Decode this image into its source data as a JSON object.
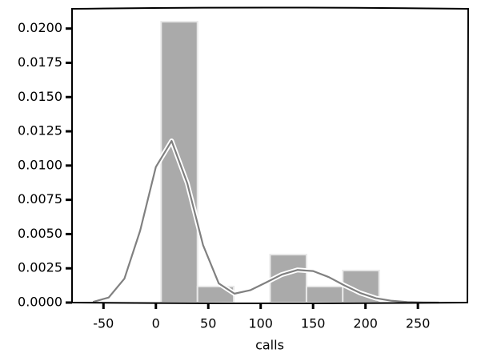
{
  "chart_data": {
    "type": "histogram",
    "xlabel": "calls",
    "bins": [
      5,
      39.7,
      74.3,
      109,
      143.7,
      178.3,
      213
    ],
    "values": [
      0.0205,
      0.00117,
      0,
      0.0035,
      0.00117,
      0.00234
    ],
    "color": "#aaaaaa",
    "line": {
      "color": "#808080",
      "x": [
        -60,
        -45,
        -30,
        -15,
        0,
        15,
        30,
        45,
        60,
        75,
        90,
        105,
        120,
        135,
        150,
        165,
        180,
        195,
        210,
        225,
        240,
        255,
        270
      ],
      "values": [
        5e-05,
        0.00037,
        0.00175,
        0.00525,
        0.0099,
        0.0118,
        0.0087,
        0.0042,
        0.0014,
        0.00065,
        0.0009,
        0.00146,
        0.00204,
        0.00238,
        0.0023,
        0.00186,
        0.00125,
        0.0007,
        0.00032,
        0.00013,
        4e-05,
        1e-05,
        0
      ]
    },
    "xlim": [
      -80,
      298
    ],
    "ylim": [
      0,
      0.0215
    ],
    "xticks": [
      -50,
      0,
      50,
      100,
      150,
      200,
      250
    ],
    "yticks": [
      {
        "value": 0,
        "label": "0.0000"
      },
      {
        "value": 0.0025,
        "label": "0.0025"
      },
      {
        "value": 0.005,
        "label": "0.0050"
      },
      {
        "value": 0.0075,
        "label": "0.0075"
      },
      {
        "value": 0.01,
        "label": "0.0100"
      },
      {
        "value": 0.0125,
        "label": "0.0125"
      },
      {
        "value": 0.015,
        "label": "0.0150"
      },
      {
        "value": 0.0175,
        "label": "0.0175"
      },
      {
        "value": 0.02,
        "label": "0.0200"
      }
    ]
  }
}
